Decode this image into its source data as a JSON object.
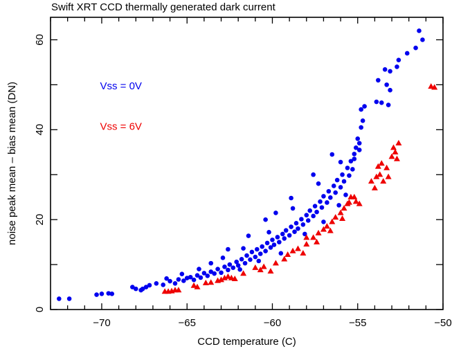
{
  "chart_data": {
    "type": "scatter",
    "title": "Swift XRT CCD thermally generated dark current",
    "xlabel": "CCD temperature (C)",
    "ylabel": "noise peak mean – bias mean (DN)",
    "xlim": [
      -73,
      -50
    ],
    "ylim": [
      0,
      65
    ],
    "xticks": [
      -70,
      -65,
      -60,
      -55,
      -50
    ],
    "xtick_labels": [
      "−70",
      "−65",
      "−60",
      "−55",
      "−50"
    ],
    "x_minor_step": 1,
    "yticks": [
      0,
      20,
      40,
      60
    ],
    "ytick_labels": [
      "0",
      "20",
      "40",
      "60"
    ],
    "y_minor_step": 10,
    "grid": false,
    "annotations": [
      {
        "text": "Vss = 0V",
        "x": -70.1,
        "y": 49,
        "color": "#0000ee"
      },
      {
        "text": "Vss = 6V",
        "x": -70.1,
        "y": 40,
        "color": "#ee0000"
      }
    ],
    "series": [
      {
        "name": "Vss = 0V",
        "marker": "circle",
        "color": "#0000ee",
        "points": [
          [
            -72.5,
            2.4
          ],
          [
            -71.9,
            2.4
          ],
          [
            -70.3,
            3.3
          ],
          [
            -70.0,
            3.5
          ],
          [
            -69.6,
            3.6
          ],
          [
            -69.4,
            3.5
          ],
          [
            -68.2,
            5.0
          ],
          [
            -68.0,
            4.6
          ],
          [
            -67.6,
            4.6
          ],
          [
            -67.4,
            5.0
          ],
          [
            -67.2,
            5.4
          ],
          [
            -67.7,
            4.3
          ],
          [
            -66.8,
            5.8
          ],
          [
            -66.4,
            5.5
          ],
          [
            -66.0,
            6.3
          ],
          [
            -65.7,
            5.8
          ],
          [
            -65.5,
            6.7
          ],
          [
            -65.2,
            6.4
          ],
          [
            -65.0,
            7.0
          ],
          [
            -64.8,
            7.2
          ],
          [
            -64.6,
            6.6
          ],
          [
            -64.4,
            7.6
          ],
          [
            -64.2,
            7.1
          ],
          [
            -64.0,
            8.1
          ],
          [
            -63.8,
            7.5
          ],
          [
            -63.6,
            8.4
          ],
          [
            -63.4,
            8.0
          ],
          [
            -63.2,
            9.0
          ],
          [
            -63.0,
            8.2
          ],
          [
            -62.8,
            9.5
          ],
          [
            -62.6,
            8.8
          ],
          [
            -62.5,
            10.0
          ],
          [
            -62.3,
            9.3
          ],
          [
            -62.1,
            10.6
          ],
          [
            -62.0,
            9.8
          ],
          [
            -61.8,
            11.2
          ],
          [
            -61.6,
            10.3
          ],
          [
            -61.5,
            12.0
          ],
          [
            -61.3,
            11.1
          ],
          [
            -61.2,
            12.8
          ],
          [
            -61.0,
            11.7
          ],
          [
            -60.9,
            13.4
          ],
          [
            -60.7,
            12.4
          ],
          [
            -60.6,
            14.0
          ],
          [
            -60.4,
            13.0
          ],
          [
            -60.3,
            14.8
          ],
          [
            -60.1,
            13.8
          ],
          [
            -60.0,
            15.5
          ],
          [
            -59.9,
            14.4
          ],
          [
            -59.7,
            16.1
          ],
          [
            -59.6,
            15.0
          ],
          [
            -59.4,
            16.8
          ],
          [
            -59.3,
            15.8
          ],
          [
            -59.2,
            17.6
          ],
          [
            -59.0,
            16.5
          ],
          [
            -58.9,
            18.4
          ],
          [
            -58.7,
            17.3
          ],
          [
            -58.6,
            19.2
          ],
          [
            -58.5,
            18.0
          ],
          [
            -58.3,
            20.1
          ],
          [
            -58.2,
            18.9
          ],
          [
            -58.0,
            21.0
          ],
          [
            -57.9,
            19.8
          ],
          [
            -57.8,
            22.0
          ],
          [
            -57.6,
            20.8
          ],
          [
            -57.5,
            23.0
          ],
          [
            -57.4,
            21.7
          ],
          [
            -57.2,
            24.0
          ],
          [
            -57.1,
            22.7
          ],
          [
            -57.0,
            25.2
          ],
          [
            -56.8,
            23.8
          ],
          [
            -56.7,
            26.3
          ],
          [
            -56.6,
            24.9
          ],
          [
            -56.4,
            27.5
          ],
          [
            -56.3,
            26.0
          ],
          [
            -56.2,
            28.8
          ],
          [
            -56.0,
            27.2
          ],
          [
            -55.9,
            30.0
          ],
          [
            -55.8,
            28.5
          ],
          [
            -55.6,
            31.5
          ],
          [
            -55.5,
            29.8
          ],
          [
            -55.4,
            33.0
          ],
          [
            -55.3,
            31.2
          ],
          [
            -55.2,
            34.6
          ],
          [
            -55.1,
            36.0
          ],
          [
            -55.0,
            38.0
          ],
          [
            -54.9,
            37.0
          ],
          [
            -54.8,
            40.5
          ],
          [
            -54.7,
            42.0
          ],
          [
            -54.8,
            44.5
          ],
          [
            -54.6,
            45.2
          ],
          [
            -54.9,
            35.5
          ],
          [
            -55.2,
            33.5
          ],
          [
            -56.0,
            32.8
          ],
          [
            -57.3,
            28.0
          ],
          [
            -58.8,
            22.5
          ],
          [
            -60.2,
            17.2
          ],
          [
            -61.7,
            13.6
          ],
          [
            -62.9,
            11.5
          ],
          [
            -64.3,
            9.0
          ],
          [
            -63.6,
            10.3
          ],
          [
            -65.3,
            7.9
          ],
          [
            -66.2,
            6.9
          ],
          [
            -59.5,
            12.5
          ],
          [
            -60.8,
            10.8
          ],
          [
            -58.1,
            16.8
          ],
          [
            -57.0,
            19.5
          ],
          [
            -56.1,
            23.2
          ],
          [
            -55.7,
            25.5
          ],
          [
            -61.9,
            8.9
          ],
          [
            -53.9,
            46.2
          ],
          [
            -53.6,
            46.0
          ],
          [
            -53.2,
            45.5
          ],
          [
            -53.8,
            51.0
          ],
          [
            -53.4,
            53.4
          ],
          [
            -53.1,
            53.0
          ],
          [
            -53.1,
            48.8
          ],
          [
            -52.7,
            54.0
          ],
          [
            -52.1,
            57.0
          ],
          [
            -51.6,
            58.2
          ],
          [
            -51.2,
            60.0
          ],
          [
            -51.4,
            62.0
          ],
          [
            -52.6,
            55.5
          ],
          [
            -53.3,
            50.0
          ],
          [
            -56.5,
            34.5
          ],
          [
            -57.6,
            30.0
          ],
          [
            -58.9,
            24.8
          ],
          [
            -60.4,
            20.0
          ],
          [
            -61.4,
            16.4
          ],
          [
            -62.6,
            13.4
          ],
          [
            -59.8,
            21.5
          ]
        ]
      },
      {
        "name": "Vss = 6V",
        "marker": "triangle",
        "color": "#ee0000",
        "points": [
          [
            -66.3,
            4.0
          ],
          [
            -66.1,
            4.0
          ],
          [
            -65.9,
            4.1
          ],
          [
            -65.7,
            4.3
          ],
          [
            -65.5,
            4.3
          ],
          [
            -64.6,
            5.3
          ],
          [
            -64.4,
            5.0
          ],
          [
            -63.9,
            5.9
          ],
          [
            -63.6,
            6.0
          ],
          [
            -63.2,
            6.4
          ],
          [
            -63.0,
            6.6
          ],
          [
            -62.8,
            7.0
          ],
          [
            -62.6,
            7.3
          ],
          [
            -62.4,
            7.0
          ],
          [
            -62.2,
            6.8
          ],
          [
            -61.7,
            8.0
          ],
          [
            -61.0,
            9.3
          ],
          [
            -60.5,
            9.5
          ],
          [
            -60.7,
            8.8
          ],
          [
            -60.1,
            8.5
          ],
          [
            -59.8,
            10.3
          ],
          [
            -59.3,
            11.2
          ],
          [
            -59.1,
            12.2
          ],
          [
            -58.8,
            13.0
          ],
          [
            -58.5,
            13.5
          ],
          [
            -58.2,
            12.5
          ],
          [
            -58.0,
            14.5
          ],
          [
            -57.6,
            16.0
          ],
          [
            -57.3,
            17.0
          ],
          [
            -57.0,
            17.8
          ],
          [
            -56.8,
            18.5
          ],
          [
            -56.5,
            19.5
          ],
          [
            -56.3,
            20.5
          ],
          [
            -56.0,
            21.5
          ],
          [
            -55.8,
            22.5
          ],
          [
            -55.6,
            23.5
          ],
          [
            -55.4,
            25.0
          ],
          [
            -55.2,
            25.0
          ],
          [
            -55.1,
            24.0
          ],
          [
            -54.9,
            23.5
          ],
          [
            -55.5,
            23.8
          ],
          [
            -57.4,
            15.0
          ],
          [
            -58.0,
            16.0
          ],
          [
            -56.6,
            17.5
          ],
          [
            -55.9,
            20.2
          ],
          [
            -54.2,
            28.5
          ],
          [
            -53.9,
            29.5
          ],
          [
            -53.7,
            30.0
          ],
          [
            -53.5,
            28.5
          ],
          [
            -53.3,
            31.5
          ],
          [
            -53.8,
            31.8
          ],
          [
            -54.0,
            27.0
          ],
          [
            -53.2,
            29.5
          ],
          [
            -53.6,
            32.5
          ],
          [
            -53.0,
            34.0
          ],
          [
            -52.8,
            35.0
          ],
          [
            -52.7,
            33.5
          ],
          [
            -52.9,
            36.0
          ],
          [
            -52.6,
            37.0
          ],
          [
            -50.7,
            49.6
          ],
          [
            -50.5,
            49.4
          ]
        ]
      }
    ]
  }
}
